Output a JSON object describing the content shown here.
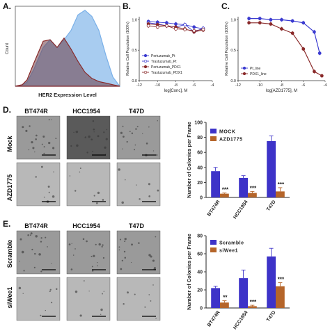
{
  "panel_labels": {
    "a": "A.",
    "b": "B.",
    "c": "C.",
    "d": "D.",
    "e": "E."
  },
  "images": {
    "cols": [
      "BT474R",
      "HCC1954",
      "T47D"
    ],
    "d_rows": [
      "Mock",
      "AZD1775"
    ],
    "e_rows": [
      "Scramble",
      "siWee1"
    ]
  },
  "chart_data": [
    {
      "id": "A",
      "type": "area",
      "xlabel": "HER2 Expression Level",
      "ylabel": "Count",
      "x_scale": "log",
      "series": [
        {
          "color": "#8a2a2a",
          "x": [
            0.5,
            0.8,
            1.0,
            1.3,
            1.7,
            2.0,
            2.3,
            2.6,
            2.9,
            3.2,
            3.5,
            3.8,
            4.1,
            4.4,
            4.7,
            5.0
          ],
          "values": [
            0,
            0.02,
            0.08,
            0.3,
            0.58,
            0.6,
            0.5,
            0.62,
            0.48,
            0.32,
            0.18,
            0.1,
            0.06,
            0.04,
            0.02,
            0
          ]
        },
        {
          "color": "#7ab0e8",
          "x": [
            0.5,
            0.8,
            1.0,
            1.3,
            1.7,
            2.0,
            2.3,
            2.6,
            2.9,
            3.2,
            3.5,
            3.8,
            4.1,
            4.4,
            4.7,
            5.0
          ],
          "values": [
            0,
            0.02,
            0.05,
            0.22,
            0.5,
            0.6,
            0.5,
            0.6,
            0.72,
            0.92,
            0.98,
            0.9,
            0.72,
            0.4,
            0.12,
            0
          ]
        }
      ]
    },
    {
      "id": "B",
      "type": "line",
      "ylabel": "Relative Cell Population (100%)",
      "xlabel": "log[Conc], M",
      "xlim": [
        -12,
        -4
      ],
      "ylim": [
        0,
        1.05
      ],
      "xticks": [
        "-12",
        "-10",
        "-8",
        "-6",
        "-4"
      ],
      "yticks": [
        "0.0",
        "0.5",
        "1.0"
      ],
      "series": [
        {
          "name": "Pertuzumab_Pt",
          "color": "#3a3ad0",
          "marker": "filled",
          "x": [
            -11,
            -10,
            -9,
            -8,
            -7,
            -6,
            -5
          ],
          "y": [
            0.97,
            0.96,
            0.95,
            0.93,
            0.92,
            0.88,
            0.85
          ]
        },
        {
          "name": "Trastuzumab_Pt",
          "color": "#3a3ad0",
          "marker": "open",
          "x": [
            -11,
            -10,
            -9,
            -8,
            -7,
            -6,
            -5
          ],
          "y": [
            0.95,
            0.93,
            0.9,
            0.88,
            0.92,
            0.8,
            0.86
          ]
        },
        {
          "name": "Pertuzumab_PDX1",
          "color": "#8a2a2a",
          "marker": "filled",
          "x": [
            -11,
            -10,
            -9,
            -8,
            -7,
            -6,
            -5
          ],
          "y": [
            0.93,
            0.92,
            0.9,
            0.88,
            0.85,
            0.8,
            0.83
          ]
        },
        {
          "name": "Trastuzumab_PDX1",
          "color": "#8a2a2a",
          "marker": "open",
          "x": [
            -11,
            -10,
            -9,
            -8,
            -7,
            -6,
            -5
          ],
          "y": [
            0.9,
            0.88,
            0.9,
            0.85,
            0.84,
            0.82,
            0.84
          ]
        }
      ]
    },
    {
      "id": "C",
      "type": "line",
      "ylabel": "Relative Cell Population (100%)",
      "xlabel": "log[AZD1775], M",
      "xlim": [
        -12,
        -4
      ],
      "ylim": [
        0,
        1.05
      ],
      "xticks": [
        "-12",
        "-10",
        "-8",
        "-6",
        "-4"
      ],
      "yticks": [
        "0.0",
        "0.5",
        "1.0"
      ],
      "series": [
        {
          "name": "Pt_line",
          "color": "#3a3ad0",
          "x": [
            -11,
            -10,
            -9,
            -8,
            -7,
            -6,
            -5,
            -4.5
          ],
          "y": [
            1.02,
            1.02,
            1.0,
            1.0,
            0.98,
            0.95,
            0.8,
            0.45
          ]
        },
        {
          "name": "PDX1_line",
          "color": "#8a2a2a",
          "x": [
            -11,
            -10,
            -9,
            -8,
            -7,
            -6,
            -5,
            -4.3
          ],
          "y": [
            0.95,
            0.95,
            0.93,
            0.85,
            0.78,
            0.52,
            0.15,
            0.08
          ]
        }
      ]
    },
    {
      "id": "D",
      "type": "bar",
      "ylabel": "Number of Colonies per Frame",
      "categories": [
        "BT474R",
        "HCC1954",
        "T47D"
      ],
      "ylim": [
        0,
        100
      ],
      "yticks": [
        "0",
        "20",
        "40",
        "60",
        "80",
        "100"
      ],
      "series": [
        {
          "name": "MOCK",
          "color": "#3d33c8",
          "values": [
            35,
            26,
            75
          ],
          "errors": [
            5,
            3,
            7
          ]
        },
        {
          "name": "AZD1775",
          "color": "#b5652a",
          "values": [
            5,
            6,
            8
          ],
          "errors": [
            1,
            2,
            5
          ]
        }
      ],
      "significance": [
        "***",
        "***",
        "***"
      ]
    },
    {
      "id": "E",
      "type": "bar",
      "ylabel": "Number of Colonies per Frame",
      "categories": [
        "BT474R",
        "HCC1954",
        "T47D"
      ],
      "ylim": [
        0,
        80
      ],
      "yticks": [
        "0",
        "20",
        "40",
        "60",
        "80"
      ],
      "series": [
        {
          "name": "Scramble",
          "color": "#3d33c8",
          "values": [
            22,
            33,
            57
          ],
          "errors": [
            2,
            9,
            9
          ]
        },
        {
          "name": "siWee1",
          "color": "#b5652a",
          "values": [
            6,
            2,
            24
          ],
          "errors": [
            2,
            1,
            4
          ]
        }
      ],
      "significance": [
        "**",
        "***",
        "***"
      ]
    }
  ]
}
